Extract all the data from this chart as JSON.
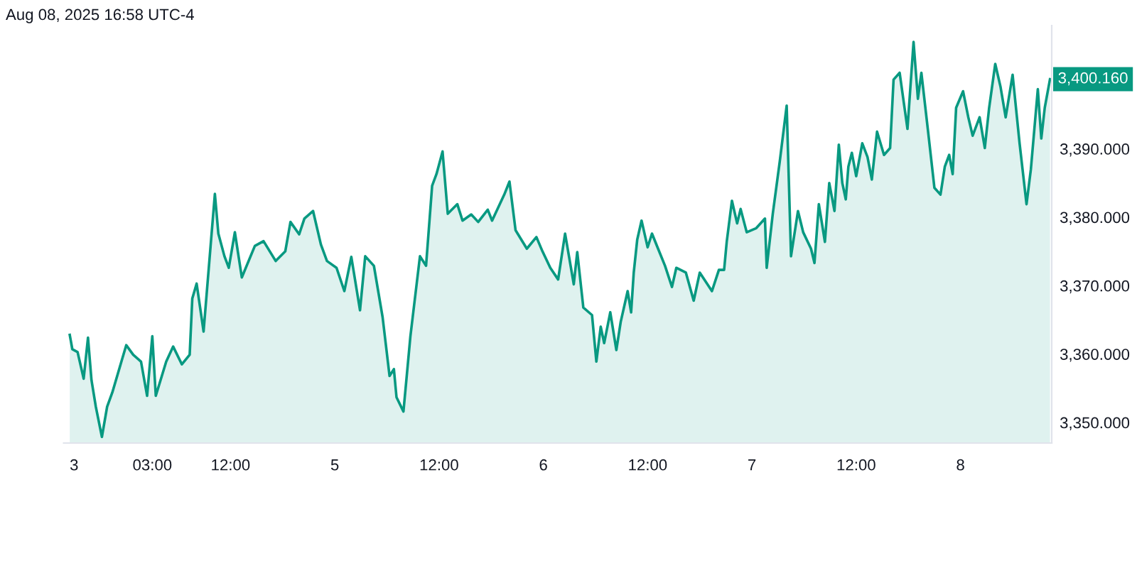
{
  "chart_data": {
    "type": "area",
    "annotations": [
      "Aug 08, 2025 16:58 UTC-4",
      {
        "text": "3,400.160",
        "x": "2025-08-08T10:18",
        "y": 3400.16
      }
    ],
    "series": [
      {
        "color": "#089981",
        "x": [
          "2025-08-03T17:30",
          "2025-08-03T17:48",
          "2025-08-03T18:24",
          "2025-08-03T19:06",
          "2025-08-03T19:36",
          "2025-08-03T20:00",
          "2025-08-03T20:30",
          "2025-08-03T21:12",
          "2025-08-03T21:48",
          "2025-08-03T22:24",
          "2025-08-04T00:00",
          "2025-08-04T00:48",
          "2025-08-04T01:42",
          "2025-08-04T02:24",
          "2025-08-04T03:00",
          "2025-08-04T03:24",
          "2025-08-04T04:36",
          "2025-08-04T05:24",
          "2025-08-04T06:24",
          "2025-08-04T07:18",
          "2025-08-04T07:36",
          "2025-08-04T08:06",
          "2025-08-04T08:54",
          "2025-08-04T09:42",
          "2025-08-04T10:12",
          "2025-08-04T10:36",
          "2025-08-04T11:18",
          "2025-08-04T11:48",
          "2025-08-04T12:30",
          "2025-08-04T13:18",
          "2025-08-04T14:48",
          "2025-08-04T15:48",
          "2025-08-04T17:12",
          "2025-08-04T18:18",
          "2025-08-04T18:54",
          "2025-08-04T19:54",
          "2025-08-04T20:30",
          "2025-08-04T21:30",
          "2025-08-04T22:24",
          "2025-08-04T23:06",
          "2025-08-05T00:12",
          "2025-08-05T01:06",
          "2025-08-05T01:54",
          "2025-08-05T02:54",
          "2025-08-05T03:30",
          "2025-08-05T04:30",
          "2025-08-05T05:30",
          "2025-08-05T06:18",
          "2025-08-05T06:48",
          "2025-08-05T07:06",
          "2025-08-05T07:54",
          "2025-08-05T08:42",
          "2025-08-05T09:48",
          "2025-08-05T10:30",
          "2025-08-05T11:12",
          "2025-08-05T11:42",
          "2025-08-05T12:24",
          "2025-08-05T13:00",
          "2025-08-05T14:06",
          "2025-08-05T14:42",
          "2025-08-05T15:42",
          "2025-08-05T16:30",
          "2025-08-05T17:36",
          "2025-08-05T18:06",
          "2025-08-05T19:30",
          "2025-08-05T20:06",
          "2025-08-05T20:48",
          "2025-08-05T22:06",
          "2025-08-05T23:12",
          "2025-08-05T23:54",
          "2025-08-06T00:48",
          "2025-08-06T01:42",
          "2025-08-06T02:30",
          "2025-08-06T03:30",
          "2025-08-06T03:54",
          "2025-08-06T04:36",
          "2025-08-06T05:36",
          "2025-08-06T06:06",
          "2025-08-06T06:36",
          "2025-08-06T07:00",
          "2025-08-06T07:42",
          "2025-08-06T08:24",
          "2025-08-06T08:54",
          "2025-08-06T09:42",
          "2025-08-06T10:06",
          "2025-08-06T10:24",
          "2025-08-06T10:48",
          "2025-08-06T11:18",
          "2025-08-06T12:00",
          "2025-08-06T12:30",
          "2025-08-06T13:12",
          "2025-08-06T14:00",
          "2025-08-06T14:48",
          "2025-08-06T15:18",
          "2025-08-06T16:24",
          "2025-08-06T17:18",
          "2025-08-06T18:00",
          "2025-08-06T19:24",
          "2025-08-06T20:12",
          "2025-08-06T20:48",
          "2025-08-06T21:06",
          "2025-08-06T21:42",
          "2025-08-06T22:18",
          "2025-08-06T22:42",
          "2025-08-06T23:24",
          "2025-08-07T00:30",
          "2025-08-07T01:30",
          "2025-08-07T01:42",
          "2025-08-07T02:24",
          "2025-08-07T03:12",
          "2025-08-07T04:00",
          "2025-08-07T04:30",
          "2025-08-07T05:18",
          "2025-08-07T05:54",
          "2025-08-07T06:48",
          "2025-08-07T07:12",
          "2025-08-07T07:42",
          "2025-08-07T08:24",
          "2025-08-07T08:54",
          "2025-08-07T09:30",
          "2025-08-07T10:00",
          "2025-08-07T10:24",
          "2025-08-07T10:48",
          "2025-08-07T11:06",
          "2025-08-07T11:30",
          "2025-08-07T12:00",
          "2025-08-07T12:42",
          "2025-08-07T13:18",
          "2025-08-07T13:48",
          "2025-08-07T14:24",
          "2025-08-07T15:12",
          "2025-08-07T15:54",
          "2025-08-07T16:18",
          "2025-08-07T17:00",
          "2025-08-07T17:54",
          "2025-08-07T18:36",
          "2025-08-07T19:06",
          "2025-08-07T19:30",
          "2025-08-07T20:18",
          "2025-08-07T21:00",
          "2025-08-07T21:42",
          "2025-08-07T22:12",
          "2025-08-07T22:42",
          "2025-08-07T23:06",
          "2025-08-07T23:30",
          "2025-08-08T00:18",
          "2025-08-08T00:54",
          "2025-08-08T01:24",
          "2025-08-08T02:12",
          "2025-08-08T02:48",
          "2025-08-08T03:18",
          "2025-08-08T04:00",
          "2025-08-08T04:36",
          "2025-08-08T05:12",
          "2025-08-08T06:00",
          "2025-08-08T06:48",
          "2025-08-08T07:36",
          "2025-08-08T08:06",
          "2025-08-08T08:54",
          "2025-08-08T09:18",
          "2025-08-08T09:42",
          "2025-08-08T10:18"
        ],
        "values": [
          3362.8,
          3360.7,
          3360.3,
          3356.4,
          3362.4,
          3356.2,
          3352.3,
          3347.9,
          3352.3,
          3354.4,
          3361.3,
          3359.9,
          3358.9,
          3353.9,
          3362.6,
          3353.9,
          3358.9,
          3361.1,
          3358.5,
          3359.9,
          3368.1,
          3370.3,
          3363.3,
          3375.7,
          3383.4,
          3377.6,
          3374.3,
          3372.6,
          3377.8,
          3371.2,
          3375.8,
          3376.5,
          3373.6,
          3375.0,
          3379.3,
          3377.5,
          3379.8,
          3380.9,
          3376.0,
          3373.6,
          3372.6,
          3369.2,
          3374.2,
          3366.4,
          3374.3,
          3372.9,
          3365.4,
          3356.8,
          3357.8,
          3353.7,
          3351.6,
          3362.6,
          3374.3,
          3372.9,
          3384.6,
          3386.3,
          3389.6,
          3380.5,
          3381.9,
          3379.5,
          3380.4,
          3379.3,
          3381.1,
          3379.5,
          3383.3,
          3385.2,
          3378.1,
          3375.4,
          3377.1,
          3375.0,
          3372.6,
          3370.9,
          3377.6,
          3370.2,
          3374.9,
          3366.8,
          3365.7,
          3358.9,
          3364.0,
          3361.6,
          3366.1,
          3360.6,
          3364.7,
          3369.2,
          3366.1,
          3371.9,
          3376.7,
          3379.5,
          3375.6,
          3377.6,
          3375.4,
          3372.9,
          3369.8,
          3372.6,
          3371.9,
          3367.8,
          3371.9,
          3369.2,
          3372.3,
          3372.3,
          3376.4,
          3382.4,
          3379.1,
          3381.2,
          3377.8,
          3378.4,
          3379.8,
          3372.6,
          3380.5,
          3388.1,
          3396.3,
          3374.3,
          3380.9,
          3377.8,
          3375.4,
          3373.3,
          3381.9,
          3376.4,
          3385.0,
          3380.9,
          3390.6,
          3385.0,
          3382.6,
          3387.4,
          3389.4,
          3386.0,
          3390.8,
          3388.8,
          3385.5,
          3392.5,
          3389.1,
          3390.1,
          3400.1,
          3401.1,
          3392.9,
          3405.6,
          3397.3,
          3401.1,
          3392.2,
          3384.3,
          3383.3,
          3387.4,
          3389.1,
          3386.3,
          3396.0,
          3398.4,
          3394.6,
          3391.9,
          3394.6,
          3390.1,
          3396.0,
          3402.4,
          3399.1,
          3394.6,
          3400.8,
          3390.8,
          3381.9,
          3387.0,
          3398.7,
          3391.5,
          3396.0,
          3400.16
        ]
      }
    ],
    "xlim": [
      "2025-08-03T16:48",
      "2025-08-08T10:30"
    ],
    "ylim": [
      3347.0,
      3408.0
    ],
    "xticks": [
      {
        "value": "2025-08-03T18:00",
        "label": "3"
      },
      {
        "value": "2025-08-04T03:00",
        "label": "03:00"
      },
      {
        "value": "2025-08-04T12:00",
        "label": "12:00"
      },
      {
        "value": "2025-08-05",
        "label": "5"
      },
      {
        "value": "2025-08-05T12:00",
        "label": "12:00"
      },
      {
        "value": "2025-08-06",
        "label": "6"
      },
      {
        "value": "2025-08-06T12:00",
        "label": "12:00"
      },
      {
        "value": "2025-08-07",
        "label": "7"
      },
      {
        "value": "2025-08-07T12:00",
        "label": "12:00"
      },
      {
        "value": "2025-08-08",
        "label": "8"
      }
    ],
    "yticks": [
      {
        "value": 3350,
        "label": "3,350.000"
      },
      {
        "value": 3360,
        "label": "3,360.000"
      },
      {
        "value": 3370,
        "label": "3,370.000"
      },
      {
        "value": 3380,
        "label": "3,380.000"
      },
      {
        "value": 3390,
        "label": "3,390.000"
      }
    ],
    "grid": false,
    "legend": false
  }
}
